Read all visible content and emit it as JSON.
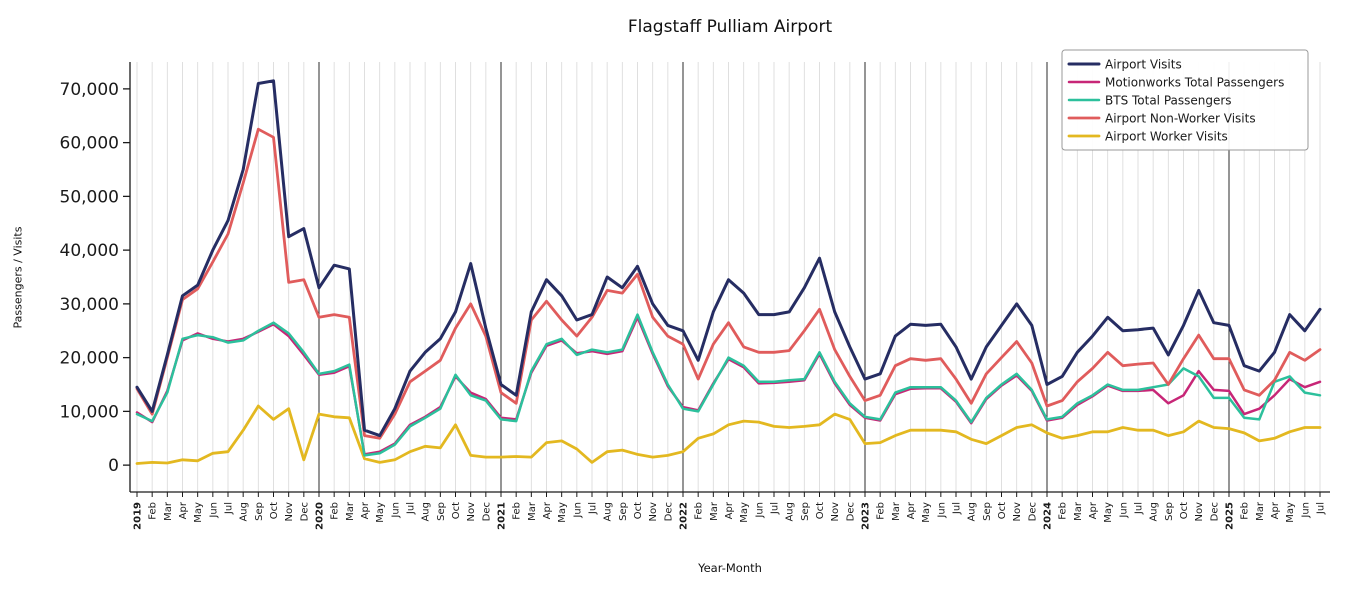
{
  "chart_data": {
    "type": "line",
    "title": "Flagstaff Pulliam Airport",
    "xlabel": "Year-Month",
    "ylabel": "Passengers / Visits",
    "grid": "vertical-monthly",
    "legend_position": "upper right",
    "background_color": "#ffffff",
    "ylim": [
      -5000,
      75000
    ],
    "yticks": [
      0,
      10000,
      20000,
      30000,
      40000,
      50000,
      60000,
      70000
    ],
    "year_line_indices": [
      0,
      12,
      24,
      36,
      48,
      60,
      72
    ],
    "x_tick_labels": [
      "2019",
      "Feb",
      "Mar",
      "Apr",
      "May",
      "Jun",
      "Jul",
      "Aug",
      "Sep",
      "Oct",
      "Nov",
      "Dec",
      "2020",
      "Feb",
      "Mar",
      "Apr",
      "May",
      "Jun",
      "Jul",
      "Aug",
      "Sep",
      "Oct",
      "Nov",
      "Dec",
      "2021",
      "Feb",
      "Mar",
      "Apr",
      "May",
      "Jun",
      "Jul",
      "Aug",
      "Sep",
      "Oct",
      "Nov",
      "Dec",
      "2022",
      "Feb",
      "Mar",
      "Apr",
      "May",
      "Jun",
      "Jul",
      "Aug",
      "Sep",
      "Oct",
      "Nov",
      "Dec",
      "2023",
      "Feb",
      "Mar",
      "Apr",
      "May",
      "Jun",
      "Jul",
      "Aug",
      "Sep",
      "Oct",
      "Nov",
      "Dec",
      "2024",
      "Feb",
      "Mar",
      "Apr",
      "May",
      "Jun",
      "Jul",
      "Aug",
      "Sep",
      "Oct",
      "Nov",
      "Dec",
      "2025",
      "Feb",
      "Mar",
      "Apr",
      "May",
      "Jun",
      "Jul"
    ],
    "series": [
      {
        "name": "Airport Visits",
        "color": "#262d63",
        "line_width": 3,
        "values": [
          14500,
          10000,
          20500,
          31500,
          33500,
          40000,
          45500,
          55000,
          71000,
          71500,
          42500,
          44000,
          33000,
          37200,
          36500,
          6500,
          5500,
          10500,
          17500,
          21000,
          23500,
          28500,
          37500,
          25500,
          15000,
          13000,
          28500,
          34500,
          31500,
          27000,
          28000,
          35000,
          33000,
          37000,
          30000,
          26000,
          25000,
          19500,
          28500,
          34500,
          32000,
          28000,
          28000,
          28500,
          33000,
          38500,
          28500,
          22000,
          16000,
          17000,
          24000,
          26200,
          26000,
          26200,
          22000,
          16000,
          22000,
          26000,
          30000,
          26000,
          15000,
          16500,
          21000,
          24000,
          27500,
          25000,
          25200,
          25500,
          20500,
          26000,
          32500,
          26500,
          26000,
          18500,
          17500,
          21000,
          28000,
          25000,
          29000
        ]
      },
      {
        "name": "Motionworks Total Passengers",
        "color": "#c72677",
        "line_width": 2.5,
        "values": [
          9800,
          8000,
          13800,
          23200,
          24500,
          23500,
          23000,
          23500,
          24800,
          26200,
          24000,
          20500,
          16800,
          17200,
          18400,
          2000,
          2500,
          4000,
          7500,
          9000,
          10800,
          16500,
          13500,
          12300,
          8800,
          8500,
          17200,
          22200,
          23200,
          20800,
          21200,
          20700,
          21200,
          27500,
          20700,
          14700,
          10800,
          10200,
          15200,
          19700,
          18200,
          15200,
          15300,
          15500,
          15800,
          20700,
          15200,
          11200,
          8800,
          8300,
          13200,
          14200,
          14300,
          14300,
          11800,
          7800,
          12300,
          14800,
          16700,
          13800,
          8300,
          8800,
          11200,
          12800,
          14800,
          13800,
          13800,
          14000,
          11500,
          13000,
          17500,
          14000,
          13800,
          9500,
          10500,
          13000,
          16000,
          14500,
          15500
        ]
      },
      {
        "name": "BTS Total Passengers",
        "color": "#2cc09c",
        "line_width": 2.5,
        "values": [
          9500,
          8200,
          13500,
          23500,
          24200,
          23800,
          22800,
          23200,
          25000,
          26500,
          24500,
          21000,
          17000,
          17500,
          18700,
          1800,
          2200,
          3800,
          7200,
          8800,
          10500,
          16800,
          13000,
          12000,
          8500,
          8200,
          17500,
          22500,
          23500,
          20500,
          21500,
          21000,
          21500,
          28000,
          21000,
          15000,
          10500,
          10000,
          15000,
          20000,
          18500,
          15500,
          15500,
          15800,
          16000,
          21000,
          15500,
          11500,
          9000,
          8500,
          13500,
          14500,
          14500,
          14500,
          12000,
          8000,
          12500,
          15000,
          17000,
          14000,
          8500,
          9000,
          11500,
          13000,
          15000,
          14000,
          14000,
          14500,
          15000,
          18000,
          16500,
          12500,
          12500,
          8800,
          8500,
          15500,
          16500,
          13500,
          13000
        ]
      },
      {
        "name": "Airport Non-Worker Visits",
        "color": "#e05c5c",
        "line_width": 2.8,
        "values": [
          14200,
          9500,
          20000,
          30800,
          32800,
          37800,
          43000,
          52500,
          62500,
          61000,
          34000,
          34500,
          27500,
          28000,
          27500,
          5500,
          5000,
          9500,
          15500,
          17500,
          19500,
          25500,
          30000,
          24000,
          13500,
          11500,
          27000,
          30500,
          27000,
          24000,
          27500,
          32500,
          32000,
          35500,
          27500,
          24000,
          22500,
          16000,
          22500,
          26500,
          22000,
          21000,
          21000,
          21300,
          25000,
          29000,
          21500,
          16500,
          12000,
          13000,
          18500,
          19800,
          19500,
          19800,
          16000,
          11500,
          17000,
          20000,
          23000,
          19000,
          11000,
          12000,
          15500,
          18000,
          21000,
          18500,
          18800,
          19000,
          15000,
          19800,
          24200,
          19800,
          19800,
          14000,
          13000,
          15800,
          21000,
          19500,
          21500
        ]
      },
      {
        "name": "Airport Worker Visits",
        "color": "#e3b820",
        "line_width": 2.8,
        "values": [
          300,
          500,
          400,
          1000,
          800,
          2200,
          2500,
          6500,
          11000,
          8500,
          10500,
          1000,
          9500,
          9000,
          8800,
          1200,
          500,
          1000,
          2500,
          3500,
          3200,
          7500,
          1800,
          1500,
          1500,
          1600,
          1500,
          4200,
          4500,
          3000,
          500,
          2500,
          2800,
          2000,
          1500,
          1800,
          2500,
          5000,
          5800,
          7500,
          8200,
          8000,
          7200,
          7000,
          7200,
          7500,
          9500,
          8500,
          4000,
          4200,
          5500,
          6500,
          6500,
          6500,
          6200,
          4800,
          4000,
          5500,
          7000,
          7500,
          6000,
          5000,
          5500,
          6200,
          6200,
          7000,
          6500,
          6500,
          5500,
          6200,
          8200,
          7000,
          6800,
          6000,
          4500,
          5000,
          6200,
          7000,
          7000
        ]
      }
    ]
  }
}
